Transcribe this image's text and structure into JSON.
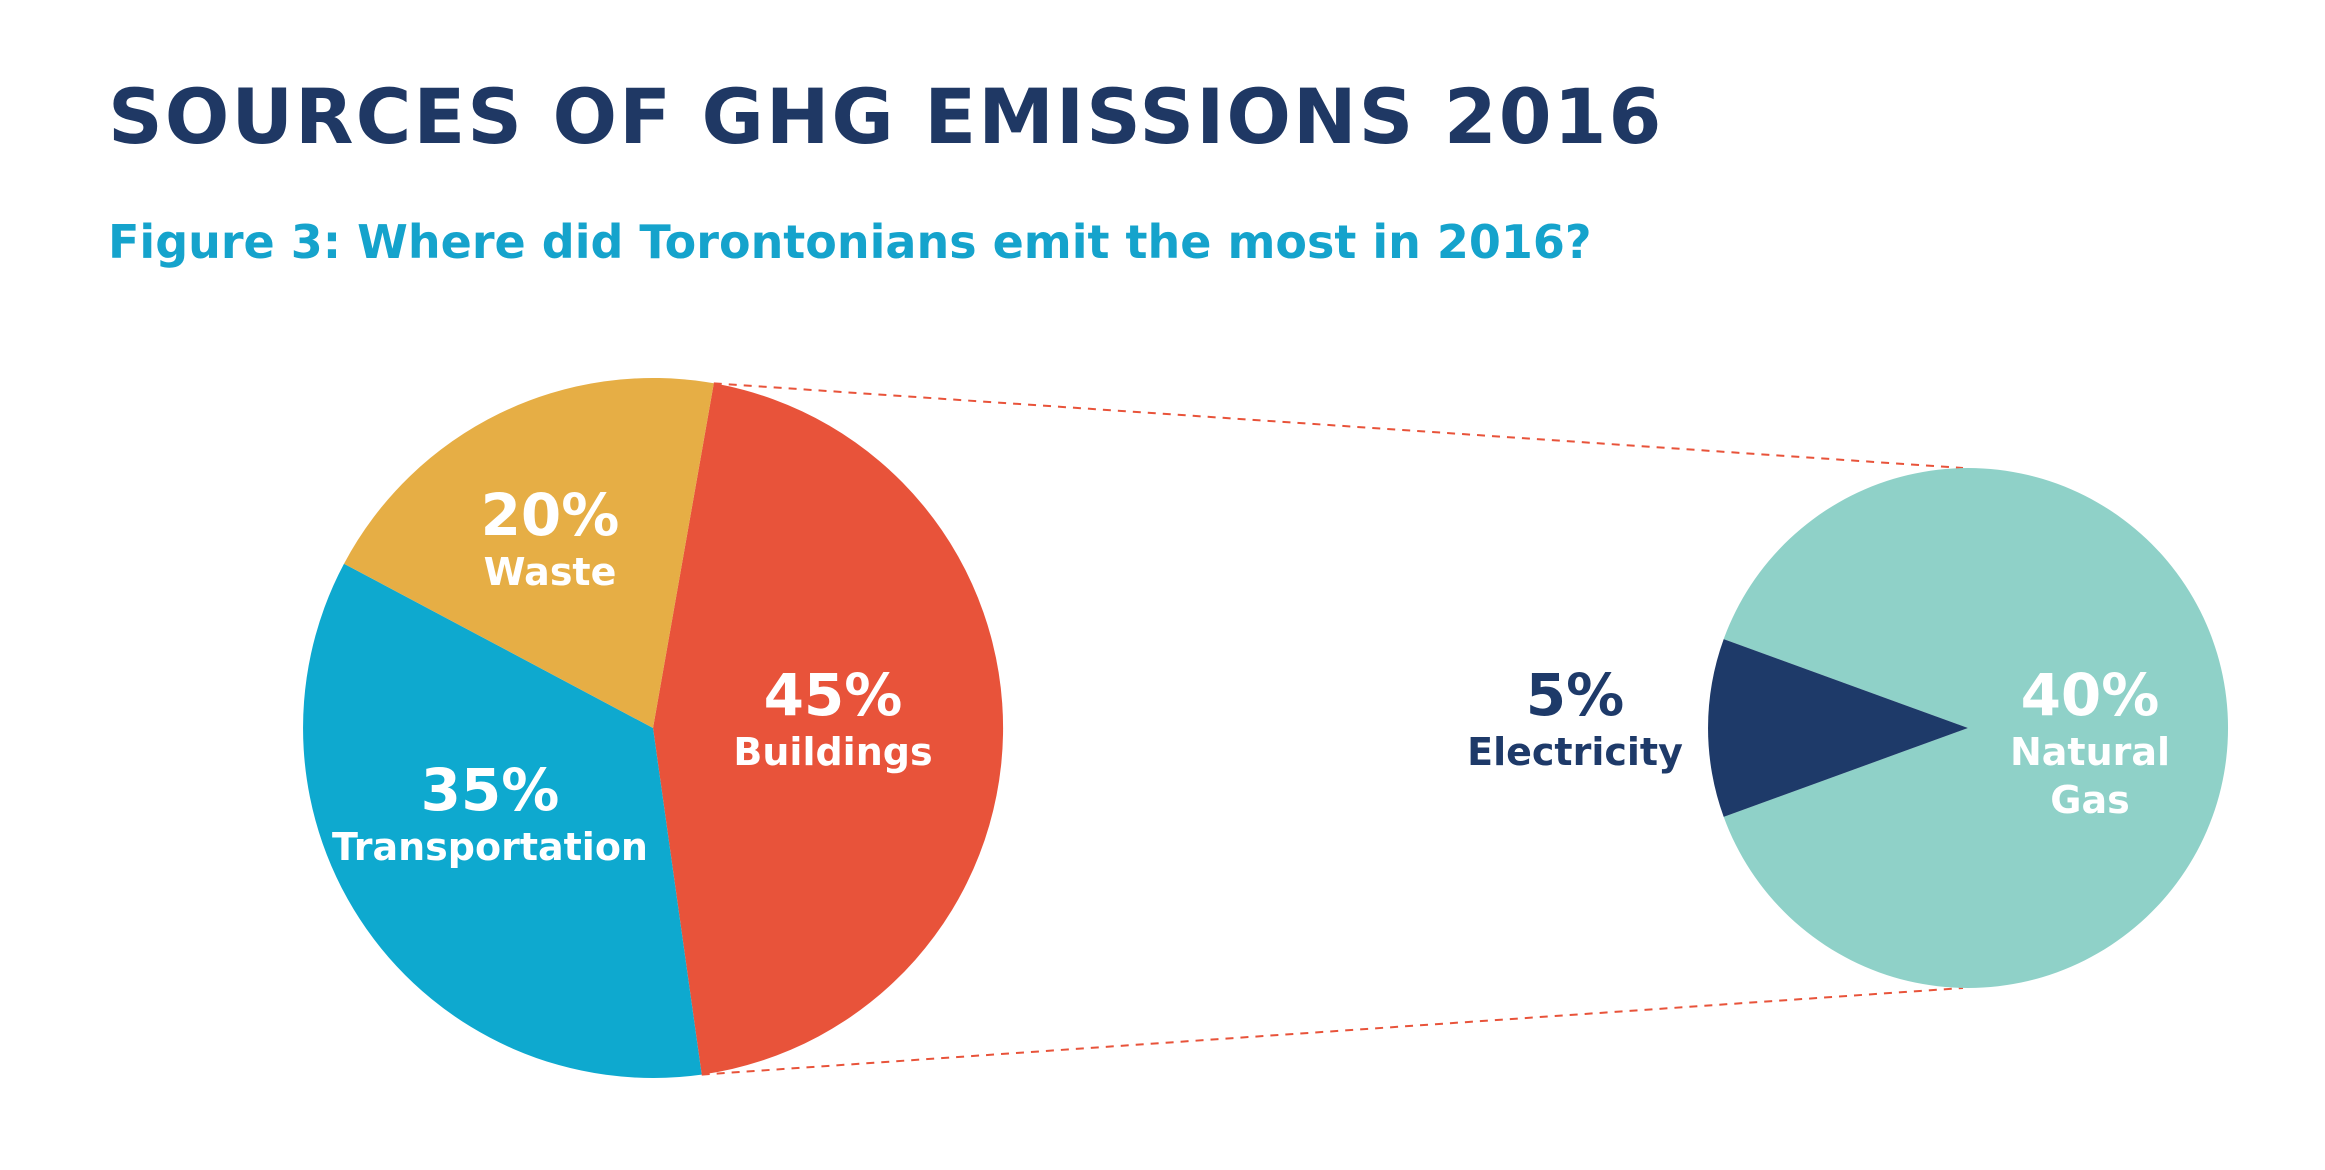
{
  "title": "SOURCES OF GHG EMISSIONS 2016",
  "subtitle": "Figure 3: Where did Torontonians emit the most in 2016?",
  "chart_data": [
    {
      "type": "pie",
      "categories": [
        "Buildings",
        "Transportation",
        "Waste"
      ],
      "values": [
        45,
        35,
        20
      ],
      "labels": [
        "45%",
        "35%",
        "20%"
      ],
      "colors": [
        "#e8533a",
        "#0ea9cf",
        "#e6ae45"
      ],
      "label_colors": [
        "#ffffff",
        "#ffffff",
        "#ffffff"
      ]
    },
    {
      "type": "pie",
      "categories": [
        "Electricity",
        "Natural Gas"
      ],
      "category_lines": [
        [
          "Electricity"
        ],
        [
          "Natural",
          "Gas"
        ]
      ],
      "values": [
        5,
        40
      ],
      "labels": [
        "5%",
        "40%"
      ],
      "colors": [
        "#1e3a69",
        "#8fd1c8"
      ],
      "label_colors": [
        "#1e3a69",
        "#ffffff"
      ],
      "breakdown_of": "Buildings",
      "connector_color": "#e8533a"
    }
  ]
}
